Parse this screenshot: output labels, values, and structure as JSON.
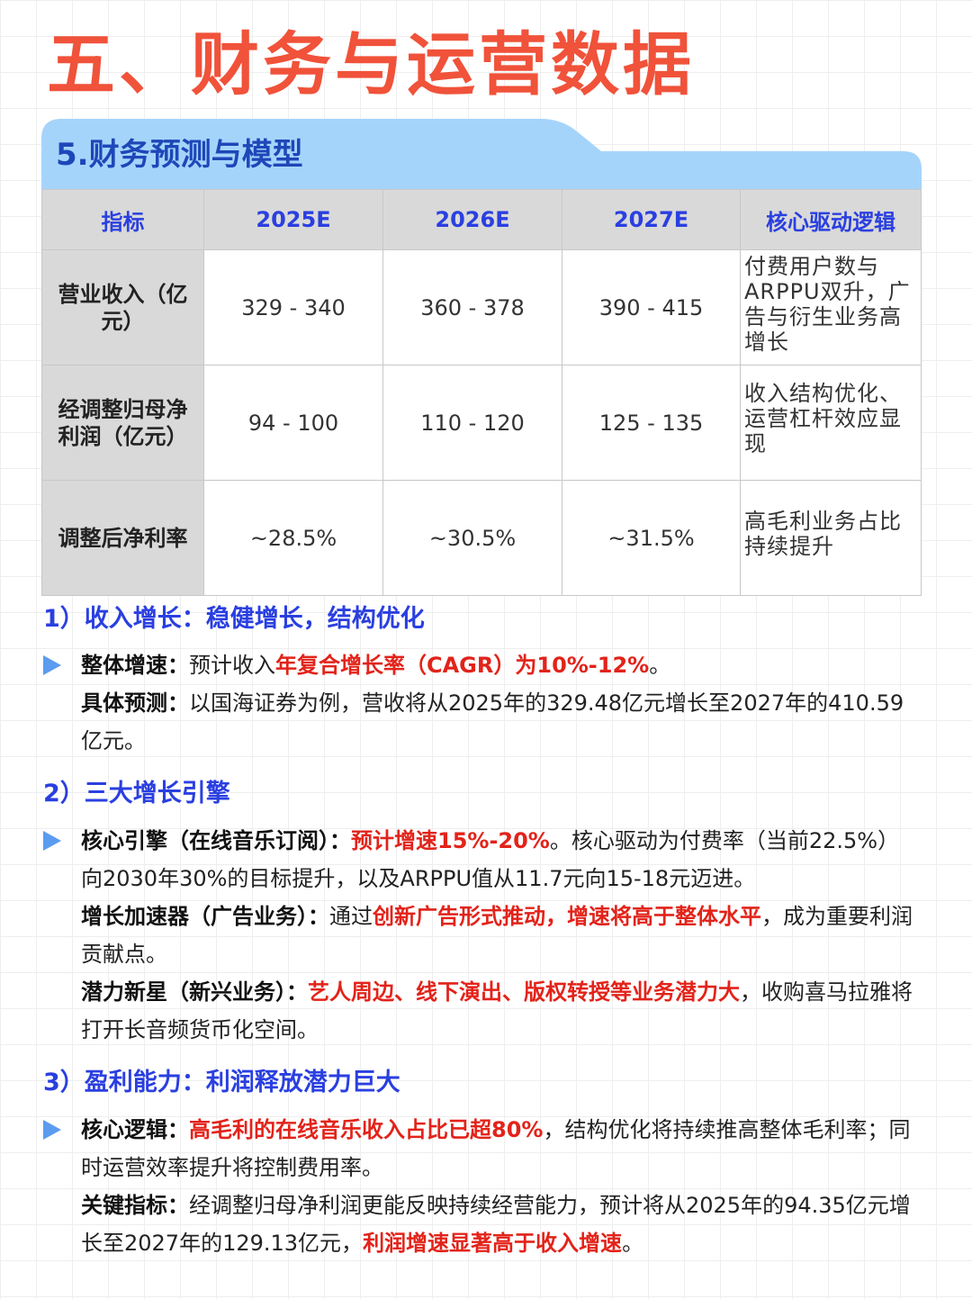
{
  "page": {
    "title": "五、财务与运营数据",
    "section_title": "5.财务预测与模型"
  },
  "table": {
    "headers": [
      "指标",
      "2025E",
      "2026E",
      "2027E",
      "核心驱动逻辑"
    ],
    "rows": [
      {
        "metric": "营业收入（亿元）",
        "y2025": "329 - 340",
        "y2026": "360 - 378",
        "y2027": "390 - 415",
        "logic": "付费用户数与ARPPU双升，广告与衍生业务高增长"
      },
      {
        "metric": "经调整归母净利润（亿元）",
        "y2025": "94 - 100",
        "y2026": "110 - 120",
        "y2027": "125 - 135",
        "logic": "收入结构优化、运营杠杆效应显现"
      },
      {
        "metric": "调整后净利率",
        "y2025": "~28.5%",
        "y2026": "~30.5%",
        "y2027": "~31.5%",
        "logic": "高毛利业务占比持续提升"
      }
    ]
  },
  "sections": [
    {
      "heading": "1）收入增长：稳健增长，结构优化",
      "p1": {
        "label": "整体增速：",
        "t1": "预计收入",
        "r1": "年复合增长率（CAGR）为10%-12%",
        "t2": "。"
      },
      "p2": {
        "label": "具体预测：",
        "t1": "以国海证券为例，营收将从2025年的329.48亿元增长至2027年的410.59亿元。"
      }
    },
    {
      "heading": "2）三大增长引擎",
      "p1": {
        "label": "核心引擎（在线音乐订阅）：",
        "r1": "预计增速15%-20%",
        "t1": "。核心驱动为付费率（当前22.5%）向2030年30%的目标提升，以及ARPPU值从11.7元向15-18元迈进。"
      },
      "p2": {
        "label": "增长加速器（广告业务）：",
        "t1": "通过",
        "r1": "创新广告形式推动，增速将高于整体水平",
        "t2": "，成为重要利润贡献点。"
      },
      "p3": {
        "label": "潜力新星（新兴业务）：",
        "r1": "艺人周边、线下演出、版权转授等业务潜力大",
        "t1": "，收购喜马拉雅将打开长音频货币化空间。"
      }
    },
    {
      "heading": "3）盈利能力：利润释放潜力巨大",
      "p1": {
        "label": "核心逻辑：",
        "r1": "高毛利的在线音乐收入占比已超80%",
        "t1": "，结构优化将持续推高整体毛利率；同时运营效率提升将控制费用率。"
      },
      "p2": {
        "label": "关键指标：",
        "t1": "经调整归母净利润更能反映持续经营能力，预计将从2025年的94.35亿元增长至2027年的129.13亿元，",
        "r1": "利润增速显著高于收入增速",
        "t2": "。"
      }
    }
  ],
  "colors": {
    "title": "#f0523a",
    "section_tab": "#a5d4fb",
    "heading_blue": "#2a3fe0",
    "highlight_red": "#e2231a",
    "bullet_blue": "#5b9bf0"
  }
}
